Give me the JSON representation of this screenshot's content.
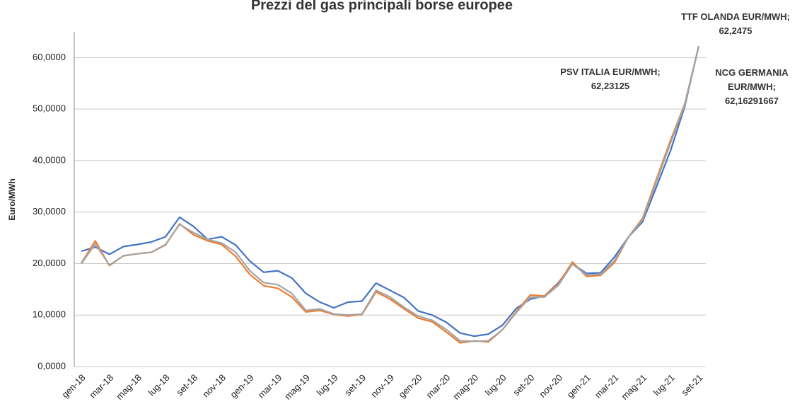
{
  "chart_data": {
    "type": "line",
    "title": "Prezzi del gas principali borse europee",
    "y_label": "Euro/MWh",
    "categories": [
      "gen-18",
      null,
      "mar-18",
      null,
      "mag-18",
      null,
      "lug-18",
      null,
      "set-18",
      null,
      "nov-18",
      null,
      "gen-19",
      null,
      "mar-19",
      null,
      "mag-19",
      null,
      "lug-19",
      null,
      "set-19",
      null,
      "nov-19",
      null,
      "gen-20",
      null,
      "mar-20",
      null,
      "mag-20",
      null,
      "lug-20",
      null,
      "set-20",
      null,
      "nov-20",
      null,
      "gen-21",
      null,
      "mar-21",
      null,
      "mag-21",
      null,
      "lug-21",
      null,
      "set-21"
    ],
    "series": [
      {
        "name": "PSV ITALIA EUR/MWH;",
        "color": "#4472c4",
        "values": [
          22.4,
          23.2,
          21.8,
          23.3,
          23.7,
          24.2,
          25.2,
          29.0,
          27.2,
          24.7,
          25.2,
          23.6,
          20.5,
          18.3,
          18.6,
          17.2,
          14.2,
          12.5,
          11.4,
          12.5,
          12.7,
          16.2,
          14.8,
          13.4,
          10.8,
          10.0,
          8.6,
          6.5,
          5.9,
          6.3,
          8.0,
          11.3,
          13.1,
          13.7,
          16.3,
          19.9,
          18.1,
          18.2,
          21.3,
          25.2,
          28.1,
          35.0,
          42.0,
          50.5,
          62.23125
        ],
        "value_labels": [
          null,
          null,
          null,
          null,
          null,
          null,
          null,
          null,
          null,
          null,
          null,
          null,
          null,
          null,
          null,
          null,
          null,
          null,
          null,
          null,
          null,
          null,
          null,
          null,
          null,
          null,
          null,
          null,
          null,
          null,
          null,
          null,
          null,
          null,
          null,
          null,
          null,
          null,
          null,
          null,
          null,
          null,
          null,
          null,
          "62,23125"
        ]
      },
      {
        "name": "TTF OLANDA EUR/MWH;",
        "color": "#ed7d31",
        "values": [
          20.1,
          24.4,
          19.6,
          21.5,
          21.9,
          22.2,
          23.6,
          27.7,
          25.6,
          24.4,
          23.7,
          21.4,
          17.9,
          15.7,
          15.2,
          13.5,
          10.6,
          10.9,
          10.1,
          9.8,
          10.1,
          14.5,
          13.1,
          11.2,
          9.4,
          8.7,
          6.7,
          4.6,
          5.0,
          4.8,
          7.1,
          10.7,
          13.9,
          13.7,
          16.1,
          20.3,
          17.5,
          17.7,
          20.2,
          25.2,
          28.8,
          36.5,
          44.0,
          51.0,
          62.2475
        ],
        "value_labels": [
          null,
          null,
          null,
          null,
          null,
          null,
          null,
          null,
          null,
          null,
          null,
          null,
          null,
          null,
          null,
          null,
          null,
          null,
          null,
          null,
          null,
          null,
          null,
          null,
          null,
          null,
          null,
          null,
          null,
          null,
          null,
          null,
          null,
          null,
          null,
          null,
          null,
          null,
          null,
          null,
          null,
          null,
          null,
          null,
          "62,2475"
        ]
      },
      {
        "name": "NCG GERMANIA EUR/MWH;",
        "color": "#a5a5a5",
        "values": [
          20.0,
          23.8,
          19.7,
          21.5,
          21.9,
          22.2,
          23.7,
          27.6,
          26.0,
          24.7,
          24.0,
          22.2,
          18.6,
          16.3,
          15.9,
          14.2,
          10.9,
          11.2,
          10.2,
          10.0,
          10.2,
          14.8,
          13.5,
          11.5,
          9.8,
          9.0,
          7.2,
          5.0,
          4.9,
          5.0,
          7.1,
          10.5,
          13.5,
          13.5,
          15.8,
          19.9,
          17.8,
          17.9,
          20.6,
          25.2,
          28.5,
          36.0,
          43.5,
          50.8,
          62.16291667
        ],
        "value_labels": [
          null,
          null,
          null,
          null,
          null,
          null,
          null,
          null,
          null,
          null,
          null,
          null,
          null,
          null,
          null,
          null,
          null,
          null,
          null,
          null,
          null,
          null,
          null,
          null,
          null,
          null,
          null,
          null,
          null,
          null,
          null,
          null,
          null,
          null,
          null,
          null,
          null,
          null,
          null,
          null,
          null,
          null,
          null,
          null,
          "62,16291667"
        ]
      }
    ],
    "ylim": [
      0,
      65
    ],
    "yticks": [
      {
        "value": 0,
        "label": "0,0000"
      },
      {
        "value": 10,
        "label": "10,0000"
      },
      {
        "value": 20,
        "label": "20,0000"
      },
      {
        "value": 30,
        "label": "30,0000"
      },
      {
        "value": 40,
        "label": "40,0000"
      },
      {
        "value": 50,
        "label": "50,0000"
      },
      {
        "value": 60,
        "label": "60,0000"
      }
    ],
    "grid": true
  }
}
